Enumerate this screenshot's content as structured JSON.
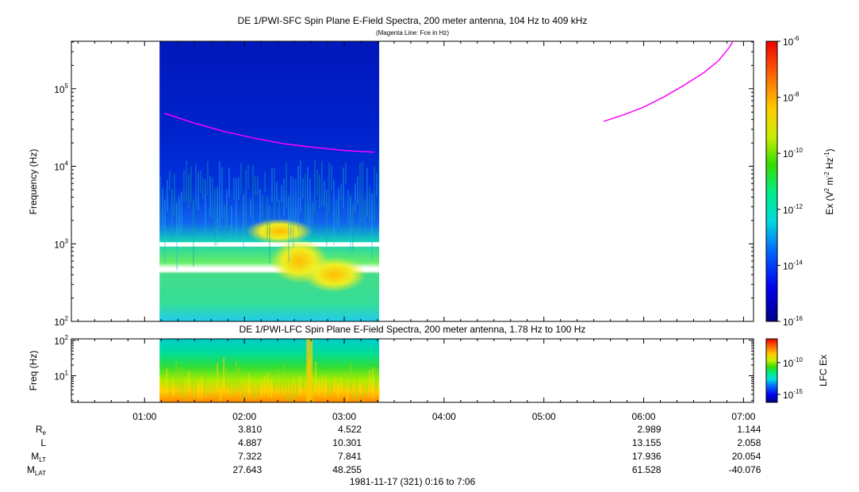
{
  "chart_data": [
    {
      "type": "heatmap",
      "title": "DE 1/PWI-SFC  Spin Plane E-Field Spectra, 200 meter antenna, 104 Hz to 409 kHz",
      "subtitle": "(Magenta Line: Fce in Hz)",
      "ylabel": "Frequency (Hz)",
      "yscale": "log",
      "ylim": [
        100,
        409000
      ],
      "yticks": [
        {
          "value": 100,
          "base": "10",
          "exp": "2"
        },
        {
          "value": 1000,
          "base": "10",
          "exp": "3"
        },
        {
          "value": 10000,
          "base": "10",
          "exp": "4"
        },
        {
          "value": 100000,
          "base": "10",
          "exp": "5"
        }
      ],
      "xlim_hours": [
        0.2667,
        7.1
      ],
      "data_coverage_hours": [
        1.15,
        3.35
      ],
      "colorbar": {
        "label_prefix": "Ex (V",
        "label_sup1": "2",
        "label_mid": " m",
        "label_sup2": "-2",
        "label_mid2": " Hz",
        "label_sup3": "-1",
        "label_suffix": ")",
        "scale": "log",
        "range": [
          1e-16,
          1e-06
        ],
        "ticks": [
          {
            "value": 1e-16,
            "base": "10",
            "exp": "-16"
          },
          {
            "value": 1e-14,
            "base": "10",
            "exp": "-14"
          },
          {
            "value": 1e-12,
            "base": "10",
            "exp": "-12"
          },
          {
            "value": 1e-10,
            "base": "10",
            "exp": "-10"
          },
          {
            "value": 1e-08,
            "base": "10",
            "exp": "-8"
          },
          {
            "value": 1e-06,
            "base": "10",
            "exp": "-6"
          }
        ]
      },
      "series": [
        {
          "color": "#ff00ff",
          "segments": [
            {
              "x": [
                1.2,
                1.5,
                1.8,
                2.1,
                2.4,
                2.7,
                3.0,
                3.3
              ],
              "y": [
                48000,
                36000,
                28000,
                23000,
                19500,
                17500,
                16000,
                15200
              ]
            },
            {
              "x": [
                5.6,
                5.8,
                6.0,
                6.2,
                6.4,
                6.6,
                6.75,
                6.85,
                6.92
              ],
              "y": [
                38000,
                46000,
                58000,
                78000,
                110000,
                160000,
                230000,
                330000,
                460000
              ]
            }
          ]
        }
      ]
    },
    {
      "type": "heatmap",
      "title": "DE 1/PWI-LFC  Spin Plane E-Field Spectra, 200 meter antenna, 1.78 Hz to 100 Hz",
      "ylabel": "Freq (Hz)",
      "yscale": "log",
      "ylim": [
        1.78,
        110
      ],
      "yticks": [
        {
          "value": 10,
          "base": "10",
          "exp": "1"
        },
        {
          "value": 100,
          "base": "10",
          "exp": "2"
        }
      ],
      "data_coverage_hours": [
        1.15,
        3.35
      ],
      "colorbar": {
        "label": "LFC Ex",
        "scale": "log",
        "ticks": [
          {
            "value": 1e-15,
            "base": "10",
            "exp": "-15"
          },
          {
            "value": 1e-10,
            "base": "10",
            "exp": "-10"
          }
        ]
      }
    }
  ],
  "x_axis": {
    "ticks": [
      {
        "hour": 1,
        "label": "01:00"
      },
      {
        "hour": 2,
        "label": "02:00"
      },
      {
        "hour": 3,
        "label": "03:00"
      },
      {
        "hour": 4,
        "label": "04:00"
      },
      {
        "hour": 5,
        "label": "05:00"
      },
      {
        "hour": 6,
        "label": "06:00"
      },
      {
        "hour": 7,
        "label": "07:00"
      }
    ]
  },
  "ephemeris": {
    "rows": [
      {
        "name": "R",
        "sub": "e",
        "values": [
          {
            "hour": 2,
            "text": "3.810"
          },
          {
            "hour": 3,
            "text": "4.522"
          },
          {
            "hour": 6,
            "text": "2.989"
          },
          {
            "hour": 7,
            "text": "1.144"
          }
        ]
      },
      {
        "name": "L",
        "sub": "",
        "values": [
          {
            "hour": 2,
            "text": "4.887"
          },
          {
            "hour": 3,
            "text": "10.301"
          },
          {
            "hour": 6,
            "text": "13.155"
          },
          {
            "hour": 7,
            "text": "2.058"
          }
        ]
      },
      {
        "name": "M",
        "sub": "LT",
        "values": [
          {
            "hour": 2,
            "text": "7.322"
          },
          {
            "hour": 3,
            "text": "7.841"
          },
          {
            "hour": 6,
            "text": "17.936"
          },
          {
            "hour": 7,
            "text": "20.054"
          }
        ]
      },
      {
        "name": "M",
        "sub": "LAT",
        "values": [
          {
            "hour": 2,
            "text": "27.643"
          },
          {
            "hour": 3,
            "text": "48.255"
          },
          {
            "hour": 6,
            "text": "61.528"
          },
          {
            "hour": 7,
            "text": "-40.076"
          }
        ]
      }
    ]
  },
  "footer": "1981-11-17 (321) 0:16 to 7:06"
}
